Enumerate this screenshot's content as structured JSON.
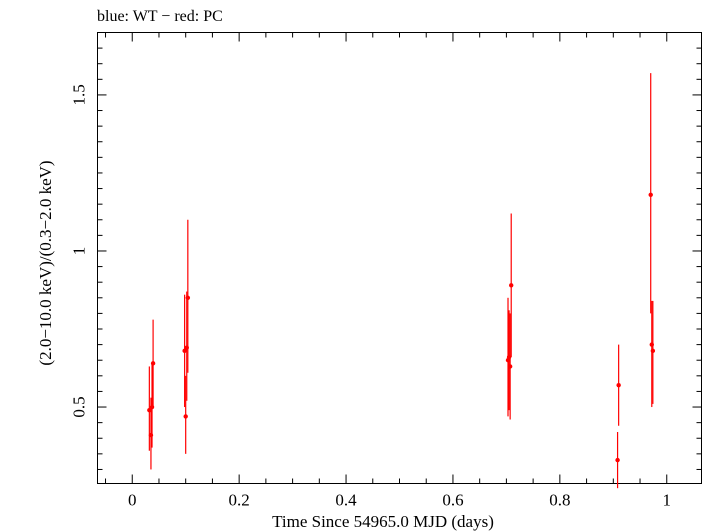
{
  "chart_data": {
    "type": "scatter",
    "title": "blue: WT − red: PC",
    "xlabel": "Time Since 54965.0 MJD (days)",
    "ylabel": "(2.0−10.0 keV)/(0.3−2.0 keV)",
    "xlim": [
      -0.065,
      1.065
    ],
    "ylim": [
      0.255,
      1.7
    ],
    "x_ticks": [
      {
        "value": 0,
        "label": "0"
      },
      {
        "value": 0.2,
        "label": "0.2"
      },
      {
        "value": 0.4,
        "label": "0.4"
      },
      {
        "value": 0.6,
        "label": "0.6"
      },
      {
        "value": 0.8,
        "label": "0.8"
      },
      {
        "value": 1,
        "label": "1"
      }
    ],
    "y_ticks": [
      {
        "value": 0.5,
        "label": "0.5"
      },
      {
        "value": 1,
        "label": "1"
      },
      {
        "value": 1.5,
        "label": "1.5"
      }
    ],
    "grid": false,
    "series": [
      {
        "name": "PC",
        "color": "#ff0000",
        "points": [
          {
            "x": 0.032,
            "y": 0.49,
            "ylo": 0.36,
            "yhi": 0.63
          },
          {
            "x": 0.035,
            "y": 0.41,
            "ylo": 0.3,
            "yhi": 0.53
          },
          {
            "x": 0.037,
            "y": 0.5,
            "ylo": 0.37,
            "yhi": 0.64
          },
          {
            "x": 0.039,
            "y": 0.64,
            "ylo": 0.5,
            "yhi": 0.78
          },
          {
            "x": 0.098,
            "y": 0.68,
            "ylo": 0.5,
            "yhi": 0.86
          },
          {
            "x": 0.1,
            "y": 0.47,
            "ylo": 0.35,
            "yhi": 0.6
          },
          {
            "x": 0.102,
            "y": 0.69,
            "ylo": 0.52,
            "yhi": 0.87
          },
          {
            "x": 0.104,
            "y": 0.85,
            "ylo": 0.61,
            "yhi": 1.1
          },
          {
            "x": 0.703,
            "y": 0.65,
            "ylo": 0.47,
            "yhi": 0.85
          },
          {
            "x": 0.705,
            "y": 0.66,
            "ylo": 0.49,
            "yhi": 0.81
          },
          {
            "x": 0.707,
            "y": 0.63,
            "ylo": 0.46,
            "yhi": 0.8
          },
          {
            "x": 0.709,
            "y": 0.89,
            "ylo": 0.66,
            "yhi": 1.12
          },
          {
            "x": 0.908,
            "y": 0.33,
            "ylo": 0.24,
            "yhi": 0.42
          },
          {
            "x": 0.91,
            "y": 0.57,
            "ylo": 0.44,
            "yhi": 0.7
          },
          {
            "x": 0.97,
            "y": 1.18,
            "ylo": 0.8,
            "yhi": 1.57
          },
          {
            "x": 0.972,
            "y": 0.7,
            "ylo": 0.5,
            "yhi": 0.84
          },
          {
            "x": 0.974,
            "y": 0.68,
            "ylo": 0.51,
            "yhi": 0.84
          }
        ]
      }
    ]
  }
}
